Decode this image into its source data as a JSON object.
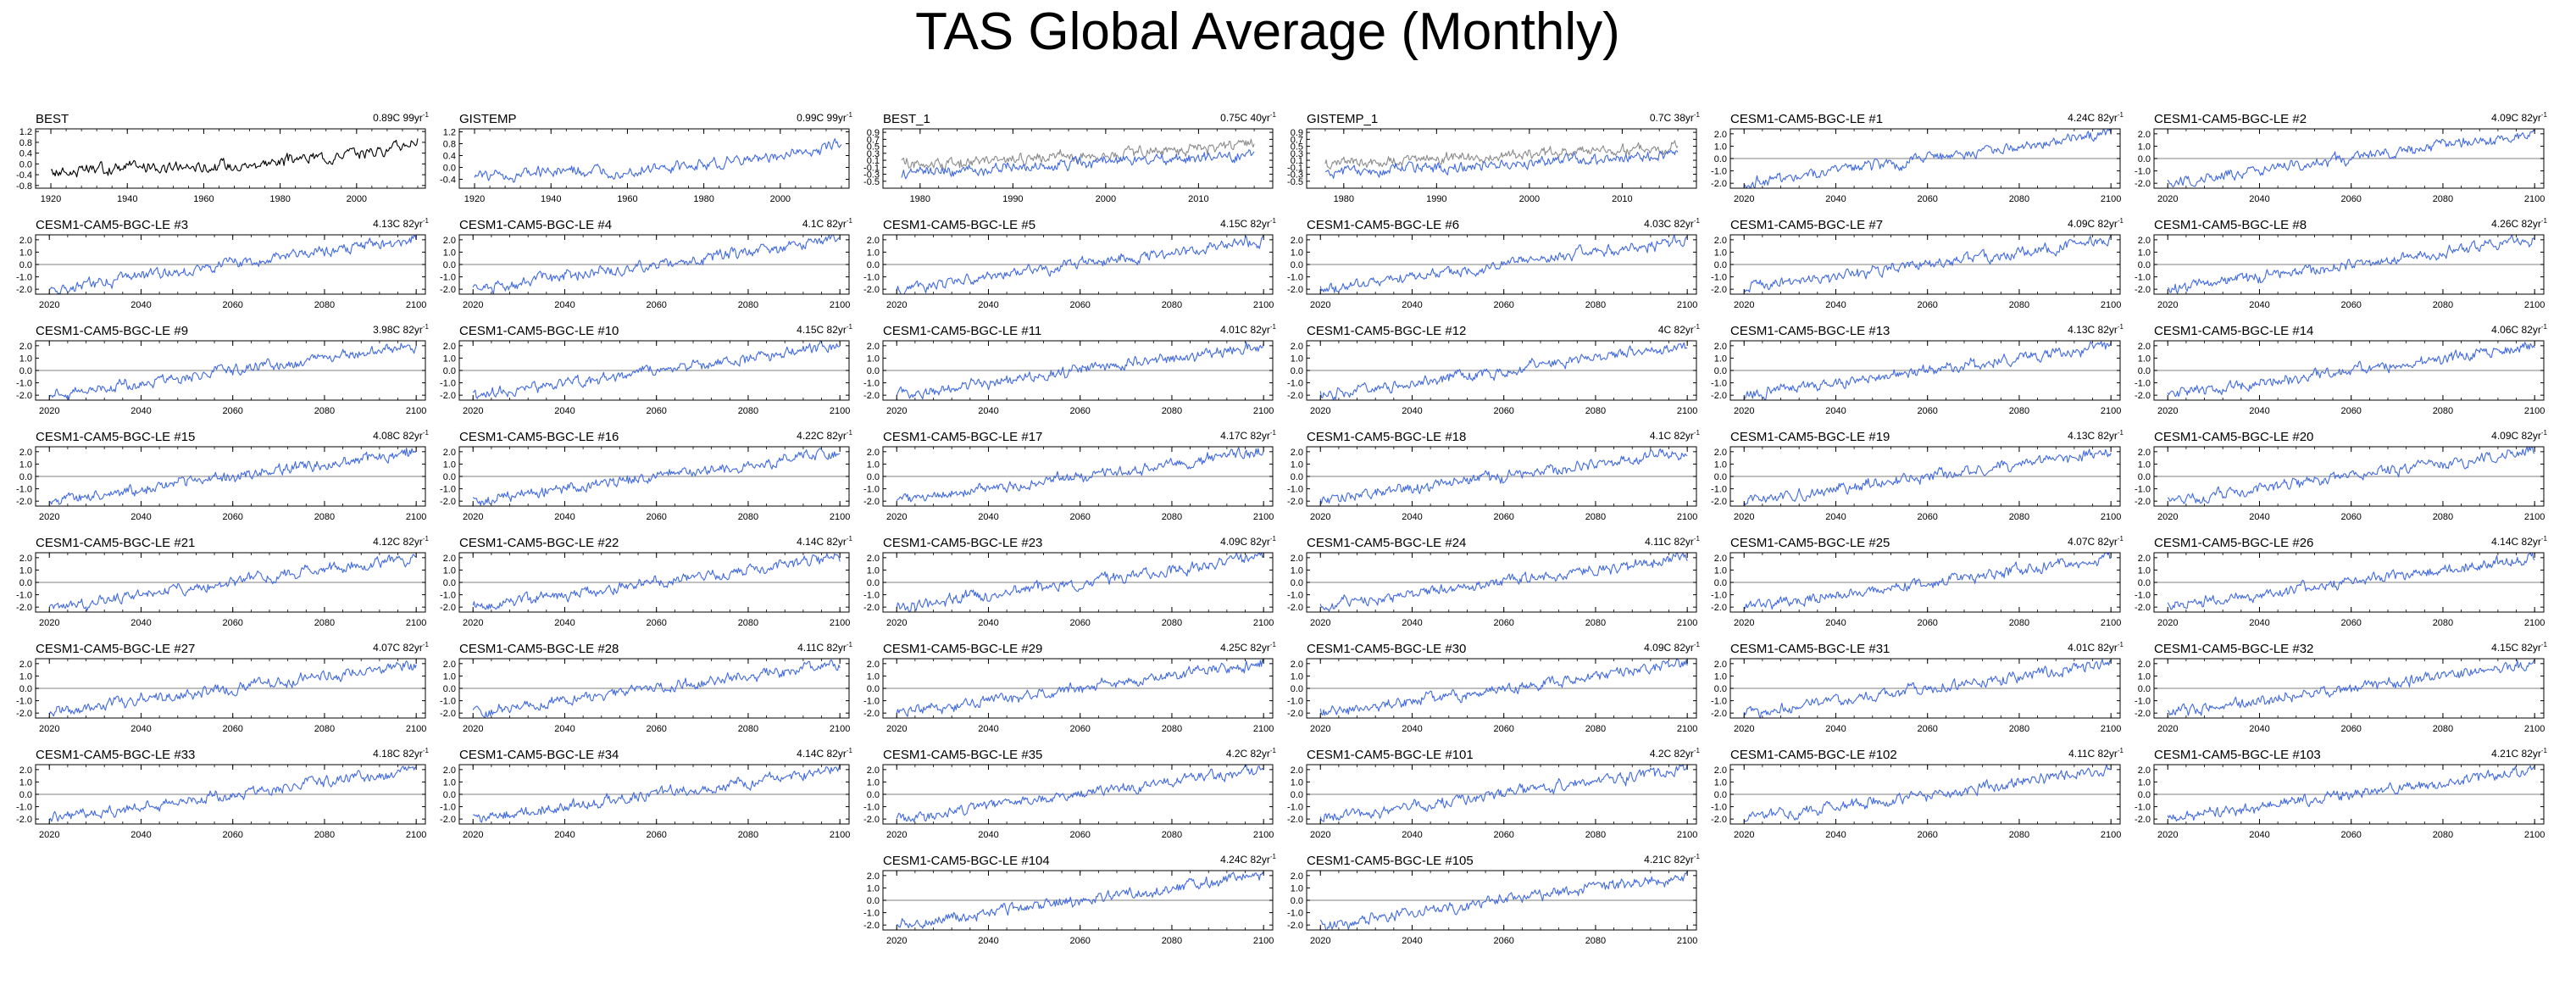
{
  "title": "TAS Global Average (Monthly)",
  "colors": {
    "observed": "#000000",
    "model": "#4169e1",
    "secondary": "#8c8c8c",
    "zero_line": "#9a9a9a",
    "axis": "#000000"
  },
  "chart_data": [
    {
      "type": "line",
      "title": "BEST",
      "trend": "0.89C 99yr",
      "trend_exp": "-1",
      "xlim": [
        1916,
        2018
      ],
      "ylim": [
        -0.9,
        1.3
      ],
      "xticks": [
        "1920",
        "1940",
        "1960",
        "1980",
        "2000"
      ],
      "yticks": [
        "1.2",
        "0.8",
        "0.4",
        "0.0",
        "-0.4",
        "-0.8"
      ],
      "zero_line": false,
      "series": [
        {
          "color": "#000000",
          "x": [
            1920,
            1930,
            1940,
            1950,
            1960,
            1970,
            1980,
            1990,
            2000,
            2010,
            2016
          ],
          "y": [
            -0.3,
            -0.25,
            -0.1,
            -0.15,
            -0.1,
            -0.05,
            0.1,
            0.25,
            0.4,
            0.6,
            0.9
          ]
        }
      ]
    },
    {
      "type": "line",
      "title": "GISTEMP",
      "trend": "0.99C 99yr",
      "trend_exp": "-1",
      "xlim": [
        1916,
        2018
      ],
      "ylim": [
        -0.7,
        1.3
      ],
      "xticks": [
        "1920",
        "1940",
        "1960",
        "1980",
        "2000"
      ],
      "yticks": [
        "1.2",
        "0.8",
        "0.4",
        "0.0",
        "-0.4"
      ],
      "zero_line": false,
      "series": [
        {
          "color": "#4169e1",
          "x": [
            1920,
            1930,
            1940,
            1950,
            1960,
            1970,
            1980,
            1990,
            2000,
            2010,
            2016
          ],
          "y": [
            -0.3,
            -0.25,
            -0.1,
            -0.15,
            -0.1,
            -0.05,
            0.1,
            0.25,
            0.4,
            0.6,
            0.9
          ]
        }
      ]
    },
    {
      "type": "line",
      "title": "BEST_1",
      "trend": "0.75C 40yr",
      "trend_exp": "-1",
      "xlim": [
        1976,
        2018
      ],
      "ylim": [
        -0.7,
        1.0
      ],
      "xticks": [
        "1980",
        "1990",
        "2000",
        "2010"
      ],
      "yticks": [
        "0.9",
        "0.7",
        "0.5",
        "0.3",
        "0.1",
        "-0.1",
        "-0.3",
        "-0.5"
      ],
      "zero_line": false,
      "series": [
        {
          "color": "#8c8c8c",
          "x": [
            1978,
            1985,
            1990,
            1995,
            2000,
            2005,
            2010,
            2016
          ],
          "y": [
            0.0,
            0.05,
            0.15,
            0.2,
            0.3,
            0.35,
            0.4,
            0.55
          ]
        },
        {
          "color": "#4169e1",
          "x": [
            1978,
            1985,
            1990,
            1995,
            2000,
            2005,
            2010,
            2016
          ],
          "y": [
            -0.25,
            -0.2,
            -0.1,
            -0.05,
            0.05,
            0.1,
            0.15,
            0.3
          ]
        }
      ]
    },
    {
      "type": "line",
      "title": "GISTEMP_1",
      "trend": "0.7C 38yr",
      "trend_exp": "-1",
      "xlim": [
        1976,
        2018
      ],
      "ylim": [
        -0.7,
        1.0
      ],
      "xticks": [
        "1980",
        "1990",
        "2000",
        "2010"
      ],
      "yticks": [
        "0.9",
        "0.7",
        "0.5",
        "0.3",
        "0.1",
        "-0.1",
        "-0.3",
        "-0.5"
      ],
      "zero_line": false,
      "series": [
        {
          "color": "#8c8c8c",
          "x": [
            1978,
            1985,
            1990,
            1995,
            2000,
            2005,
            2010,
            2016
          ],
          "y": [
            0.0,
            0.05,
            0.15,
            0.2,
            0.3,
            0.35,
            0.4,
            0.55
          ]
        },
        {
          "color": "#4169e1",
          "x": [
            1978,
            1985,
            1990,
            1995,
            2000,
            2005,
            2010,
            2016
          ],
          "y": [
            -0.25,
            -0.2,
            -0.1,
            -0.05,
            0.05,
            0.1,
            0.15,
            0.3
          ]
        }
      ]
    }
  ],
  "ensemble": {
    "xlim": [
      2017,
      2102
    ],
    "ylim": [
      -2.4,
      2.4
    ],
    "xticks": [
      "2020",
      "2040",
      "2060",
      "2080",
      "2100"
    ],
    "yticks": [
      "2.0",
      "1.0",
      "0.0",
      "-1.0",
      "-2.0"
    ],
    "zero_line": true,
    "trend_exp": "-1",
    "series_color": "#4169e1",
    "trend_x": [
      2020,
      2100
    ],
    "members": [
      {
        "title": "CESM1-CAM5-BGC-LE #1",
        "trend": "4.24C 82yr",
        "y": [
          -2.0,
          2.0
        ]
      },
      {
        "title": "CESM1-CAM5-BGC-LE #2",
        "trend": "4.09C 82yr",
        "y": [
          -2.0,
          2.0
        ]
      },
      {
        "title": "CESM1-CAM5-BGC-LE #3",
        "trend": "4.13C 82yr",
        "y": [
          -2.0,
          2.0
        ]
      },
      {
        "title": "CESM1-CAM5-BGC-LE #4",
        "trend": "4.1C 82yr",
        "y": [
          -2.0,
          2.0
        ]
      },
      {
        "title": "CESM1-CAM5-BGC-LE #5",
        "trend": "4.15C 82yr",
        "y": [
          -2.0,
          2.0
        ]
      },
      {
        "title": "CESM1-CAM5-BGC-LE #6",
        "trend": "4.03C 82yr",
        "y": [
          -2.0,
          2.0
        ]
      },
      {
        "title": "CESM1-CAM5-BGC-LE #7",
        "trend": "4.09C 82yr",
        "y": [
          -2.0,
          2.0
        ]
      },
      {
        "title": "CESM1-CAM5-BGC-LE #8",
        "trend": "4.26C 82yr",
        "y": [
          -2.0,
          2.0
        ]
      },
      {
        "title": "CESM1-CAM5-BGC-LE #9",
        "trend": "3.98C 82yr",
        "y": [
          -2.0,
          2.0
        ]
      },
      {
        "title": "CESM1-CAM5-BGC-LE #10",
        "trend": "4.15C 82yr",
        "y": [
          -2.0,
          2.0
        ]
      },
      {
        "title": "CESM1-CAM5-BGC-LE #11",
        "trend": "4.01C 82yr",
        "y": [
          -2.0,
          2.0
        ]
      },
      {
        "title": "CESM1-CAM5-BGC-LE #12",
        "trend": "4C 82yr",
        "y": [
          -2.0,
          2.0
        ]
      },
      {
        "title": "CESM1-CAM5-BGC-LE #13",
        "trend": "4.13C 82yr",
        "y": [
          -2.0,
          2.0
        ]
      },
      {
        "title": "CESM1-CAM5-BGC-LE #14",
        "trend": "4.06C 82yr",
        "y": [
          -2.0,
          2.0
        ]
      },
      {
        "title": "CESM1-CAM5-BGC-LE #15",
        "trend": "4.08C 82yr",
        "y": [
          -2.0,
          2.0
        ]
      },
      {
        "title": "CESM1-CAM5-BGC-LE #16",
        "trend": "4.22C 82yr",
        "y": [
          -2.0,
          2.0
        ]
      },
      {
        "title": "CESM1-CAM5-BGC-LE #17",
        "trend": "4.17C 82yr",
        "y": [
          -2.0,
          2.0
        ]
      },
      {
        "title": "CESM1-CAM5-BGC-LE #18",
        "trend": "4.1C 82yr",
        "y": [
          -2.0,
          2.0
        ]
      },
      {
        "title": "CESM1-CAM5-BGC-LE #19",
        "trend": "4.13C 82yr",
        "y": [
          -2.0,
          2.0
        ]
      },
      {
        "title": "CESM1-CAM5-BGC-LE #20",
        "trend": "4.09C 82yr",
        "y": [
          -2.0,
          2.0
        ]
      },
      {
        "title": "CESM1-CAM5-BGC-LE #21",
        "trend": "4.12C 82yr",
        "y": [
          -2.0,
          2.0
        ]
      },
      {
        "title": "CESM1-CAM5-BGC-LE #22",
        "trend": "4.14C 82yr",
        "y": [
          -2.0,
          2.0
        ]
      },
      {
        "title": "CESM1-CAM5-BGC-LE #23",
        "trend": "4.09C 82yr",
        "y": [
          -2.0,
          2.0
        ]
      },
      {
        "title": "CESM1-CAM5-BGC-LE #24",
        "trend": "4.11C 82yr",
        "y": [
          -2.0,
          2.0
        ]
      },
      {
        "title": "CESM1-CAM5-BGC-LE #25",
        "trend": "4.07C 82yr",
        "y": [
          -2.0,
          2.0
        ]
      },
      {
        "title": "CESM1-CAM5-BGC-LE #26",
        "trend": "4.14C 82yr",
        "y": [
          -2.0,
          2.0
        ]
      },
      {
        "title": "CESM1-CAM5-BGC-LE #27",
        "trend": "4.07C 82yr",
        "y": [
          -2.0,
          2.0
        ]
      },
      {
        "title": "CESM1-CAM5-BGC-LE #28",
        "trend": "4.11C 82yr",
        "y": [
          -2.0,
          2.0
        ]
      },
      {
        "title": "CESM1-CAM5-BGC-LE #29",
        "trend": "4.25C 82yr",
        "y": [
          -2.0,
          2.0
        ]
      },
      {
        "title": "CESM1-CAM5-BGC-LE #30",
        "trend": "4.09C 82yr",
        "y": [
          -2.0,
          2.0
        ]
      },
      {
        "title": "CESM1-CAM5-BGC-LE #31",
        "trend": "4.01C 82yr",
        "y": [
          -2.0,
          2.0
        ]
      },
      {
        "title": "CESM1-CAM5-BGC-LE #32",
        "trend": "4.15C 82yr",
        "y": [
          -2.0,
          2.0
        ]
      },
      {
        "title": "CESM1-CAM5-BGC-LE #33",
        "trend": "4.18C 82yr",
        "y": [
          -2.0,
          2.0
        ]
      },
      {
        "title": "CESM1-CAM5-BGC-LE #34",
        "trend": "4.14C 82yr",
        "y": [
          -2.0,
          2.0
        ]
      },
      {
        "title": "CESM1-CAM5-BGC-LE #35",
        "trend": "4.2C 82yr",
        "y": [
          -2.0,
          2.0
        ]
      },
      {
        "title": "CESM1-CAM5-BGC-LE #101",
        "trend": "4.2C 82yr",
        "y": [
          -2.0,
          2.0
        ]
      },
      {
        "title": "CESM1-CAM5-BGC-LE #102",
        "trend": "4.11C 82yr",
        "y": [
          -2.0,
          2.0
        ]
      },
      {
        "title": "CESM1-CAM5-BGC-LE #103",
        "trend": "4.21C 82yr",
        "y": [
          -2.0,
          2.0
        ]
      },
      {
        "title": "CESM1-CAM5-BGC-LE #104",
        "trend": "4.24C 82yr",
        "y": [
          -2.0,
          2.0
        ]
      },
      {
        "title": "CESM1-CAM5-BGC-LE #105",
        "trend": "4.21C 82yr",
        "y": [
          -2.0,
          2.0
        ]
      }
    ]
  }
}
